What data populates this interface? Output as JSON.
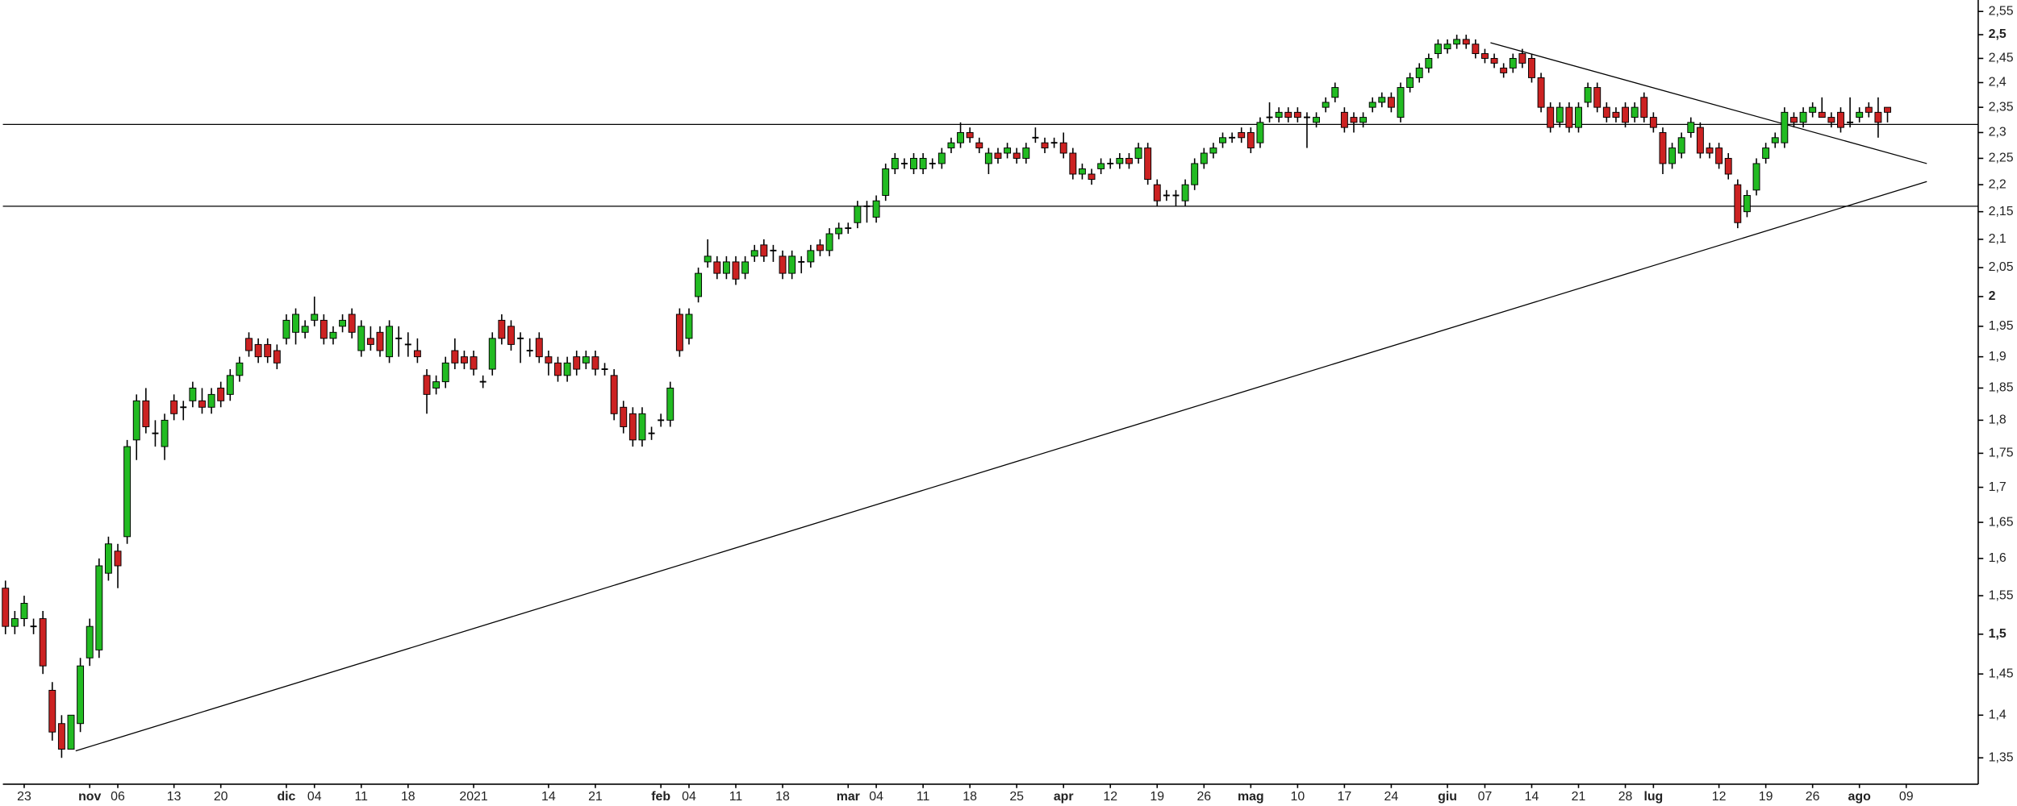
{
  "chart_data": {
    "type": "candlestick",
    "log": true,
    "up_color": "#22bb22",
    "down_color": "#cc2222",
    "ylim": [
      1.32,
      2.575
    ],
    "yticks": [
      {
        "value": 2.55,
        "label": "2,55"
      },
      {
        "value": 2.5,
        "label": "2,5"
      },
      {
        "value": 2.45,
        "label": "2,45"
      },
      {
        "value": 2.4,
        "label": "2,4"
      },
      {
        "value": 2.35,
        "label": "2,35"
      },
      {
        "value": 2.3,
        "label": "2,3"
      },
      {
        "value": 2.25,
        "label": "2,25"
      },
      {
        "value": 2.2,
        "label": "2,2"
      },
      {
        "value": 2.15,
        "label": "2,15"
      },
      {
        "value": 2.1,
        "label": "2,1"
      },
      {
        "value": 2.05,
        "label": "2,05"
      },
      2,
      {
        "value": 1.95,
        "label": "1,95"
      },
      {
        "value": 1.9,
        "label": "1,9"
      },
      {
        "value": 1.85,
        "label": "1,85"
      },
      {
        "value": 1.8,
        "label": "1,8"
      },
      {
        "value": 1.75,
        "label": "1,75"
      },
      {
        "value": 1.7,
        "label": "1,7"
      },
      {
        "value": 1.65,
        "label": "1,65"
      },
      {
        "value": 1.6,
        "label": "1,6"
      },
      {
        "value": 1.55,
        "label": "1,55"
      },
      {
        "value": 1.5,
        "label": "1,5"
      },
      {
        "value": 1.45,
        "label": "1,45"
      },
      {
        "value": 1.4,
        "label": "1,4"
      },
      {
        "value": 1.35,
        "label": "1,35"
      }
    ],
    "categories": [
      null,
      null,
      "23",
      null,
      null,
      null,
      null,
      null,
      null,
      "nov",
      null,
      null,
      "06",
      null,
      null,
      null,
      null,
      null,
      "13",
      null,
      null,
      null,
      null,
      "20",
      null,
      null,
      null,
      null,
      null,
      null,
      "dic",
      null,
      null,
      "04",
      null,
      null,
      null,
      null,
      "11",
      null,
      null,
      null,
      null,
      "18",
      null,
      null,
      null,
      null,
      null,
      null,
      "2021",
      null,
      null,
      null,
      null,
      null,
      null,
      null,
      "14",
      null,
      null,
      null,
      null,
      "21",
      null,
      null,
      null,
      null,
      null,
      null,
      "feb",
      null,
      null,
      "04",
      null,
      null,
      null,
      null,
      "11",
      null,
      null,
      null,
      null,
      "18",
      null,
      null,
      null,
      null,
      null,
      null,
      "mar",
      null,
      null,
      "04",
      null,
      null,
      null,
      null,
      "11",
      null,
      null,
      null,
      null,
      "18",
      null,
      null,
      null,
      null,
      "25",
      null,
      null,
      null,
      null,
      "apr",
      null,
      null,
      null,
      null,
      "12",
      null,
      null,
      null,
      null,
      "19",
      null,
      null,
      null,
      null,
      "26",
      null,
      null,
      null,
      null,
      "mag",
      null,
      null,
      null,
      null,
      "10",
      null,
      null,
      null,
      null,
      "17",
      null,
      null,
      null,
      null,
      "24",
      null,
      null,
      null,
      null,
      null,
      "giu",
      null,
      null,
      null,
      "07",
      null,
      null,
      null,
      null,
      "14",
      null,
      null,
      null,
      null,
      "21",
      null,
      null,
      null,
      null,
      "28",
      null,
      null,
      "lug",
      null,
      null,
      null,
      null,
      null,
      null,
      "12",
      null,
      null,
      null,
      null,
      "19",
      null,
      null,
      null,
      null,
      "26",
      null,
      null,
      null,
      null,
      "ago",
      null,
      null,
      null,
      null,
      "09",
      null,
      null,
      null,
      null,
      null,
      null
    ],
    "ohlc": [
      [
        1.56,
        1.57,
        1.5,
        1.51
      ],
      [
        1.51,
        1.53,
        1.5,
        1.52
      ],
      [
        1.52,
        1.55,
        1.51,
        1.54
      ],
      [
        1.51,
        1.52,
        1.5,
        1.51
      ],
      [
        1.52,
        1.53,
        1.45,
        1.46
      ],
      [
        1.43,
        1.44,
        1.37,
        1.38
      ],
      [
        1.39,
        1.4,
        1.35,
        1.36
      ],
      [
        1.36,
        1.4,
        1.36,
        1.4
      ],
      [
        1.39,
        1.47,
        1.38,
        1.46
      ],
      [
        1.47,
        1.52,
        1.46,
        1.51
      ],
      [
        1.48,
        1.6,
        1.47,
        1.59
      ],
      [
        1.58,
        1.63,
        1.57,
        1.62
      ],
      [
        1.61,
        1.62,
        1.56,
        1.59
      ],
      [
        1.63,
        1.77,
        1.62,
        1.76
      ],
      [
        1.77,
        1.84,
        1.74,
        1.83
      ],
      [
        1.83,
        1.85,
        1.78,
        1.79
      ],
      [
        1.78,
        1.8,
        1.76,
        1.78
      ],
      [
        1.76,
        1.81,
        1.74,
        1.8
      ],
      [
        1.83,
        1.84,
        1.8,
        1.81
      ],
      [
        1.82,
        1.83,
        1.8,
        1.82
      ],
      [
        1.83,
        1.86,
        1.82,
        1.85
      ],
      [
        1.83,
        1.85,
        1.81,
        1.82
      ],
      [
        1.82,
        1.85,
        1.81,
        1.84
      ],
      [
        1.85,
        1.86,
        1.82,
        1.83
      ],
      [
        1.84,
        1.88,
        1.83,
        1.87
      ],
      [
        1.87,
        1.9,
        1.86,
        1.89
      ],
      [
        1.93,
        1.94,
        1.9,
        1.91
      ],
      [
        1.92,
        1.93,
        1.89,
        1.9
      ],
      [
        1.92,
        1.93,
        1.89,
        1.9
      ],
      [
        1.91,
        1.92,
        1.88,
        1.89
      ],
      [
        1.93,
        1.97,
        1.92,
        1.96
      ],
      [
        1.94,
        1.98,
        1.92,
        1.97
      ],
      [
        1.94,
        1.96,
        1.93,
        1.95
      ],
      [
        1.96,
        2.0,
        1.95,
        1.97
      ],
      [
        1.96,
        1.97,
        1.92,
        1.93
      ],
      [
        1.93,
        1.95,
        1.92,
        1.94
      ],
      [
        1.95,
        1.97,
        1.94,
        1.96
      ],
      [
        1.97,
        1.98,
        1.93,
        1.94
      ],
      [
        1.91,
        1.96,
        1.9,
        1.95
      ],
      [
        1.93,
        1.95,
        1.91,
        1.92
      ],
      [
        1.94,
        1.95,
        1.9,
        1.91
      ],
      [
        1.9,
        1.96,
        1.89,
        1.95
      ],
      [
        1.93,
        1.95,
        1.9,
        1.93
      ],
      [
        1.92,
        1.94,
        1.9,
        1.92
      ],
      [
        1.91,
        1.93,
        1.89,
        1.9
      ],
      [
        1.87,
        1.88,
        1.81,
        1.84
      ],
      [
        1.85,
        1.87,
        1.84,
        1.86
      ],
      [
        1.86,
        1.9,
        1.85,
        1.89
      ],
      [
        1.91,
        1.93,
        1.88,
        1.89
      ],
      [
        1.9,
        1.91,
        1.88,
        1.89
      ],
      [
        1.9,
        1.91,
        1.87,
        1.88
      ],
      [
        1.86,
        1.87,
        1.85,
        1.86
      ],
      [
        1.88,
        1.94,
        1.87,
        1.93
      ],
      [
        1.96,
        1.97,
        1.92,
        1.93
      ],
      [
        1.95,
        1.96,
        1.91,
        1.92
      ],
      [
        1.93,
        1.94,
        1.89,
        1.93
      ],
      [
        1.91,
        1.93,
        1.9,
        1.91
      ],
      [
        1.93,
        1.94,
        1.89,
        1.9
      ],
      [
        1.9,
        1.91,
        1.87,
        1.89
      ],
      [
        1.89,
        1.9,
        1.86,
        1.87
      ],
      [
        1.87,
        1.9,
        1.86,
        1.89
      ],
      [
        1.9,
        1.91,
        1.87,
        1.88
      ],
      [
        1.89,
        1.91,
        1.88,
        1.9
      ],
      [
        1.9,
        1.91,
        1.87,
        1.88
      ],
      [
        1.88,
        1.89,
        1.87,
        1.88
      ],
      [
        1.87,
        1.88,
        1.8,
        1.81
      ],
      [
        1.82,
        1.83,
        1.78,
        1.79
      ],
      [
        1.81,
        1.82,
        1.76,
        1.77
      ],
      [
        1.77,
        1.82,
        1.76,
        1.81
      ],
      [
        1.78,
        1.79,
        1.77,
        1.78
      ],
      [
        1.8,
        1.81,
        1.79,
        1.8
      ],
      [
        1.8,
        1.86,
        1.79,
        1.85
      ],
      [
        1.97,
        1.98,
        1.9,
        1.91
      ],
      [
        1.93,
        1.98,
        1.92,
        1.97
      ],
      [
        2.0,
        2.05,
        1.99,
        2.04
      ],
      [
        2.06,
        2.1,
        2.05,
        2.07
      ],
      [
        2.06,
        2.07,
        2.03,
        2.04
      ],
      [
        2.04,
        2.07,
        2.03,
        2.06
      ],
      [
        2.06,
        2.07,
        2.02,
        2.03
      ],
      [
        2.04,
        2.07,
        2.03,
        2.06
      ],
      [
        2.07,
        2.09,
        2.06,
        2.08
      ],
      [
        2.09,
        2.1,
        2.06,
        2.07
      ],
      [
        2.08,
        2.09,
        2.06,
        2.08
      ],
      [
        2.07,
        2.08,
        2.03,
        2.04
      ],
      [
        2.04,
        2.08,
        2.03,
        2.07
      ],
      [
        2.06,
        2.07,
        2.04,
        2.06
      ],
      [
        2.06,
        2.09,
        2.05,
        2.08
      ],
      [
        2.09,
        2.1,
        2.07,
        2.08
      ],
      [
        2.08,
        2.12,
        2.07,
        2.11
      ],
      [
        2.11,
        2.13,
        2.1,
        2.12
      ],
      [
        2.12,
        2.13,
        2.11,
        2.12
      ],
      [
        2.13,
        2.17,
        2.12,
        2.16
      ],
      [
        2.16,
        2.17,
        2.13,
        2.16
      ],
      [
        2.14,
        2.18,
        2.13,
        2.17
      ],
      [
        2.18,
        2.24,
        2.17,
        2.23
      ],
      [
        2.23,
        2.26,
        2.22,
        2.25
      ],
      [
        2.24,
        2.25,
        2.23,
        2.24
      ],
      [
        2.23,
        2.26,
        2.22,
        2.25
      ],
      [
        2.23,
        2.26,
        2.22,
        2.25
      ],
      [
        2.24,
        2.25,
        2.23,
        2.24
      ],
      [
        2.24,
        2.27,
        2.23,
        2.26
      ],
      [
        2.27,
        2.29,
        2.26,
        2.28
      ],
      [
        2.28,
        2.32,
        2.27,
        2.3
      ],
      [
        2.3,
        2.31,
        2.28,
        2.29
      ],
      [
        2.28,
        2.29,
        2.26,
        2.27
      ],
      [
        2.24,
        2.27,
        2.22,
        2.26
      ],
      [
        2.26,
        2.27,
        2.24,
        2.25
      ],
      [
        2.26,
        2.28,
        2.25,
        2.27
      ],
      [
        2.26,
        2.27,
        2.24,
        2.25
      ],
      [
        2.25,
        2.28,
        2.24,
        2.27
      ],
      [
        2.29,
        2.31,
        2.28,
        2.29
      ],
      [
        2.28,
        2.29,
        2.26,
        2.27
      ],
      [
        2.28,
        2.29,
        2.27,
        2.28
      ],
      [
        2.28,
        2.3,
        2.25,
        2.26
      ],
      [
        2.26,
        2.27,
        2.21,
        2.22
      ],
      [
        2.22,
        2.24,
        2.21,
        2.23
      ],
      [
        2.22,
        2.23,
        2.2,
        2.21
      ],
      [
        2.23,
        2.25,
        2.22,
        2.24
      ],
      [
        2.24,
        2.25,
        2.23,
        2.24
      ],
      [
        2.24,
        2.26,
        2.23,
        2.25
      ],
      [
        2.25,
        2.26,
        2.23,
        2.24
      ],
      [
        2.25,
        2.28,
        2.24,
        2.27
      ],
      [
        2.27,
        2.28,
        2.2,
        2.21
      ],
      [
        2.2,
        2.21,
        2.16,
        2.17
      ],
      [
        2.18,
        2.19,
        2.17,
        2.18
      ],
      [
        2.18,
        2.19,
        2.16,
        2.18
      ],
      [
        2.17,
        2.21,
        2.16,
        2.2
      ],
      [
        2.2,
        2.25,
        2.19,
        2.24
      ],
      [
        2.24,
        2.27,
        2.23,
        2.26
      ],
      [
        2.26,
        2.28,
        2.25,
        2.27
      ],
      [
        2.28,
        2.3,
        2.27,
        2.29
      ],
      [
        2.29,
        2.3,
        2.28,
        2.29
      ],
      [
        2.3,
        2.31,
        2.28,
        2.29
      ],
      [
        2.3,
        2.31,
        2.26,
        2.27
      ],
      [
        2.28,
        2.33,
        2.27,
        2.32
      ],
      [
        2.33,
        2.36,
        2.32,
        2.33
      ],
      [
        2.33,
        2.35,
        2.32,
        2.34
      ],
      [
        2.34,
        2.35,
        2.32,
        2.33
      ],
      [
        2.34,
        2.35,
        2.32,
        2.33
      ],
      [
        2.33,
        2.34,
        2.27,
        2.33
      ],
      [
        2.32,
        2.34,
        2.31,
        2.33
      ],
      [
        2.35,
        2.37,
        2.34,
        2.36
      ],
      [
        2.37,
        2.4,
        2.36,
        2.39
      ],
      [
        2.34,
        2.35,
        2.3,
        2.31
      ],
      [
        2.33,
        2.34,
        2.3,
        2.32
      ],
      [
        2.32,
        2.34,
        2.31,
        2.33
      ],
      [
        2.35,
        2.37,
        2.34,
        2.36
      ],
      [
        2.36,
        2.38,
        2.35,
        2.37
      ],
      [
        2.37,
        2.38,
        2.34,
        2.35
      ],
      [
        2.33,
        2.4,
        2.32,
        2.39
      ],
      [
        2.39,
        2.42,
        2.38,
        2.41
      ],
      [
        2.41,
        2.44,
        2.4,
        2.43
      ],
      [
        2.43,
        2.46,
        2.42,
        2.45
      ],
      [
        2.46,
        2.49,
        2.45,
        2.48
      ],
      [
        2.47,
        2.49,
        2.46,
        2.48
      ],
      [
        2.48,
        2.5,
        2.47,
        2.49
      ],
      [
        2.49,
        2.5,
        2.47,
        2.48
      ],
      [
        2.48,
        2.49,
        2.45,
        2.46
      ],
      [
        2.46,
        2.47,
        2.44,
        2.45
      ],
      [
        2.45,
        2.46,
        2.43,
        2.44
      ],
      [
        2.43,
        2.44,
        2.41,
        2.42
      ],
      [
        2.43,
        2.46,
        2.42,
        2.45
      ],
      [
        2.46,
        2.47,
        2.43,
        2.44
      ],
      [
        2.45,
        2.46,
        2.4,
        2.41
      ],
      [
        2.41,
        2.42,
        2.34,
        2.35
      ],
      [
        2.35,
        2.36,
        2.3,
        2.31
      ],
      [
        2.32,
        2.36,
        2.31,
        2.35
      ],
      [
        2.35,
        2.36,
        2.3,
        2.31
      ],
      [
        2.31,
        2.36,
        2.3,
        2.35
      ],
      [
        2.36,
        2.4,
        2.35,
        2.39
      ],
      [
        2.39,
        2.4,
        2.34,
        2.35
      ],
      [
        2.35,
        2.36,
        2.32,
        2.33
      ],
      [
        2.34,
        2.35,
        2.32,
        2.33
      ],
      [
        2.35,
        2.36,
        2.31,
        2.32
      ],
      [
        2.33,
        2.36,
        2.32,
        2.35
      ],
      [
        2.37,
        2.38,
        2.32,
        2.33
      ],
      [
        2.33,
        2.34,
        2.3,
        2.31
      ],
      [
        2.3,
        2.31,
        2.22,
        2.24
      ],
      [
        2.24,
        2.28,
        2.23,
        2.27
      ],
      [
        2.26,
        2.3,
        2.25,
        2.29
      ],
      [
        2.3,
        2.33,
        2.29,
        2.32
      ],
      [
        2.31,
        2.32,
        2.25,
        2.26
      ],
      [
        2.27,
        2.28,
        2.25,
        2.26
      ],
      [
        2.27,
        2.28,
        2.23,
        2.24
      ],
      [
        2.25,
        2.26,
        2.21,
        2.22
      ],
      [
        2.2,
        2.21,
        2.12,
        2.13
      ],
      [
        2.15,
        2.19,
        2.14,
        2.18
      ],
      [
        2.19,
        2.25,
        2.18,
        2.24
      ],
      [
        2.25,
        2.28,
        2.24,
        2.27
      ],
      [
        2.28,
        2.3,
        2.27,
        2.29
      ],
      [
        2.28,
        2.35,
        2.27,
        2.34
      ],
      [
        2.33,
        2.34,
        2.31,
        2.32
      ],
      [
        2.32,
        2.35,
        2.31,
        2.34
      ],
      [
        2.34,
        2.36,
        2.33,
        2.35
      ],
      [
        2.34,
        2.37,
        2.33,
        2.33
      ],
      [
        2.33,
        2.34,
        2.31,
        2.32
      ],
      [
        2.34,
        2.35,
        2.3,
        2.31
      ],
      [
        2.32,
        2.37,
        2.31,
        2.32
      ],
      [
        2.33,
        2.35,
        2.32,
        2.34
      ],
      [
        2.35,
        2.36,
        2.33,
        2.34
      ],
      [
        2.34,
        2.37,
        2.29,
        2.32
      ],
      [
        2.35,
        2.35,
        2.32,
        2.34
      ],
      null,
      null,
      null,
      null,
      null,
      null,
      null,
      null
    ],
    "hlines": [
      2.316,
      2.16
    ],
    "trendlines": [
      {
        "x": [
          7.5,
          205.2
        ],
        "y": [
          1.358,
          2.206
        ]
      },
      {
        "x": [
          158.6,
          205.2
        ],
        "y": [
          2.483,
          2.24
        ]
      }
    ]
  }
}
